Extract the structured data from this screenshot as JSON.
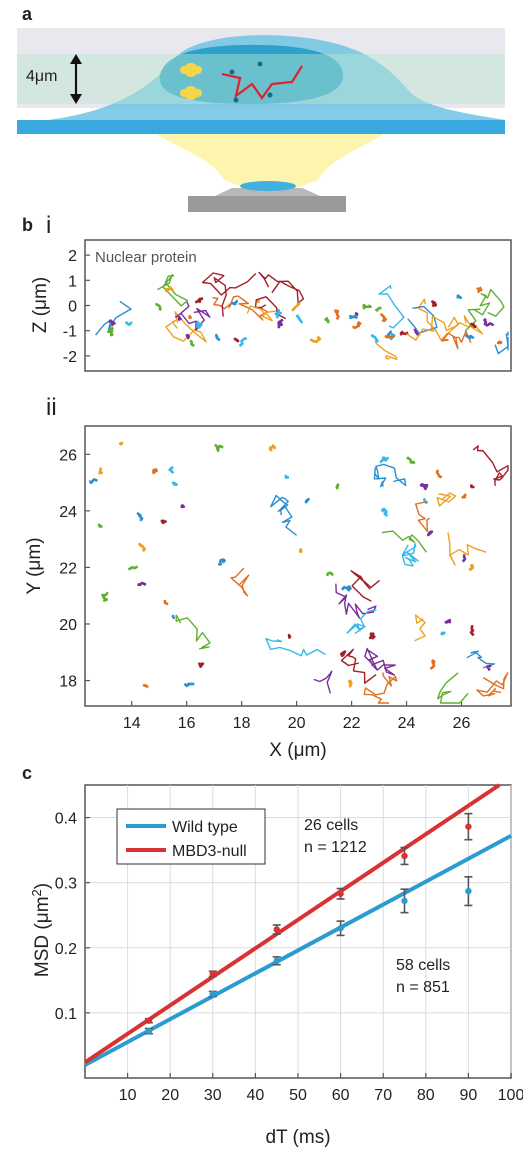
{
  "panels": {
    "a": {
      "letter": "a",
      "scale_label": "4μm",
      "colors": {
        "cell": "#6fc3e3",
        "nucleus": "#1f99c8",
        "beam_band": "#9ad6c2",
        "coverslip": "#39a8df",
        "light": "#fdf3a0",
        "objective": "#9a9a9a",
        "track": "#e0222a",
        "emitter": "#f5d64a"
      }
    },
    "b": {
      "letter": "b",
      "sub_i": {
        "label": "i",
        "annotation": "Nuclear protein",
        "ylabel": "Z (μm)",
        "yticks": [
          "2",
          "1",
          "0",
          "-1",
          "-2"
        ],
        "ylim": [
          -2.6,
          2.6
        ]
      },
      "sub_ii": {
        "label": "ii",
        "ylabel": "Y (μm)",
        "xlabel": "X (μm)",
        "yticks": [
          "26",
          "24",
          "22",
          "20",
          "18"
        ],
        "xticks": [
          "14",
          "16",
          "18",
          "20",
          "22",
          "24",
          "26"
        ],
        "xlim": [
          12.3,
          27.8
        ],
        "ylim": [
          17.1,
          27
        ]
      },
      "track_colors": [
        "#e07020",
        "#2b8fd0",
        "#f0a020",
        "#7b2d99",
        "#60b030",
        "#35b9e8",
        "#a0202a"
      ]
    },
    "c": {
      "letter": "c"
    }
  },
  "chart_data": {
    "type": "scatter",
    "xlabel": "dT (ms)",
    "ylabel": "MSD (μm",
    "ylabel_sup": "2",
    "ylabel_close": ")",
    "xlim": [
      0,
      100
    ],
    "ylim": [
      0,
      0.45
    ],
    "xticks": [
      "10",
      "20",
      "30",
      "40",
      "50",
      "60",
      "70",
      "80",
      "90",
      "100"
    ],
    "yticks": [
      "0.1",
      "0.2",
      "0.3",
      "0.4"
    ],
    "grid": true,
    "legend": {
      "placement": "top-left"
    },
    "series": [
      {
        "name": "Wild type",
        "color": "#2b9ccf",
        "x": [
          15,
          30,
          45,
          60,
          75,
          90
        ],
        "y": [
          0.072,
          0.129,
          0.18,
          0.23,
          0.272,
          0.287
        ],
        "err": [
          0.004,
          0.004,
          0.006,
          0.011,
          0.018,
          0.022
        ],
        "fit": {
          "x": [
            0,
            100
          ],
          "y": [
            0.02,
            0.372
          ]
        },
        "annotation_lines": [
          "58 cells",
          "n = 851"
        ]
      },
      {
        "name": "MBD3-null",
        "color": "#d83232",
        "x": [
          15,
          30,
          45,
          60,
          75,
          90
        ],
        "y": [
          0.088,
          0.16,
          0.228,
          0.283,
          0.341,
          0.386
        ],
        "err": [
          0.003,
          0.004,
          0.007,
          0.008,
          0.013,
          0.02
        ],
        "fit": {
          "x": [
            0,
            100
          ],
          "y": [
            0.024,
            0.462
          ]
        },
        "annotation_lines": [
          "26 cells",
          "n = 1212"
        ]
      }
    ]
  }
}
